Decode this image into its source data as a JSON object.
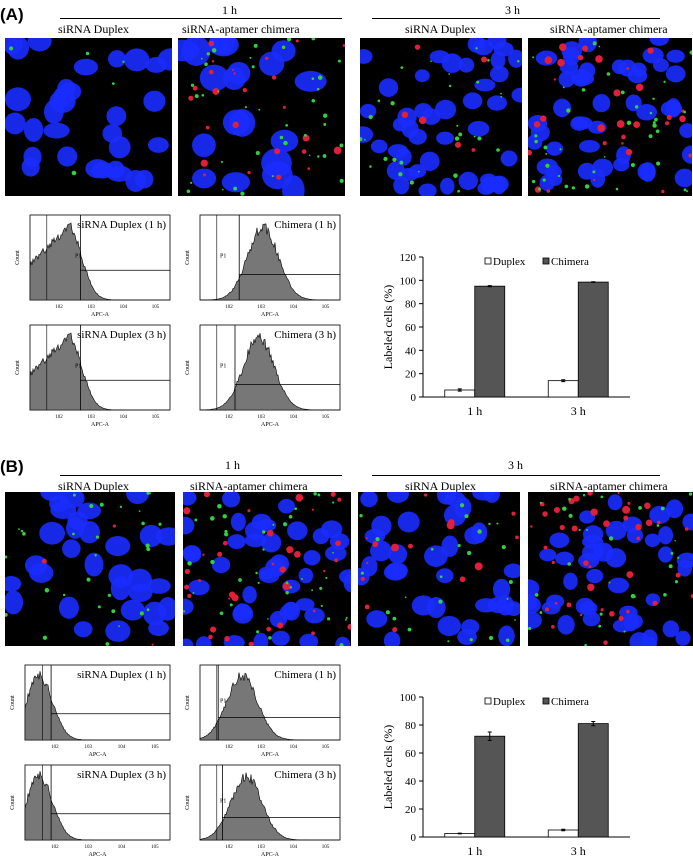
{
  "panels": [
    {
      "label": "(A)",
      "times": [
        "1 h",
        "3 h"
      ],
      "image_labels": [
        "siRNA Duplex",
        "siRNA-aptamer chimera",
        "siRNA Duplex",
        "siRNA-aptamer chimera"
      ],
      "histograms": [
        {
          "title": "siRNA Duplex (1 h)",
          "ylabel": "Count",
          "xlabel": "APC-A",
          "gate": "P1"
        },
        {
          "title": "Chimera (1 h)",
          "ylabel": "Count",
          "xlabel": "APC-A",
          "gate": "P1"
        },
        {
          "title": "siRNA Duplex (3 h)",
          "ylabel": "Count",
          "xlabel": "APC-A",
          "gate": "P1"
        },
        {
          "title": "Chimera (3 h)",
          "ylabel": "Count",
          "xlabel": "APC-A",
          "gate": "P1"
        }
      ]
    },
    {
      "label": "(B)",
      "times": [
        "1 h",
        "3 h"
      ],
      "image_labels": [
        "siRNA Duplex",
        "siRNA-aptamer chimera",
        "siRNA Duplex",
        "siRNA-aptamer chimera"
      ],
      "histograms": [
        {
          "title": "siRNA Duplex (1 h)",
          "ylabel": "Count",
          "xlabel": "APC-A",
          "gate": ""
        },
        {
          "title": "Chimera (1 h)",
          "ylabel": "Count",
          "xlabel": "APC-A",
          "gate": "P1"
        },
        {
          "title": "siRNA Duplex (3 h)",
          "ylabel": "Count",
          "xlabel": "APC-A",
          "gate": ""
        },
        {
          "title": "Chimera (3 h)",
          "ylabel": "Count",
          "xlabel": "APC-A",
          "gate": "P1"
        }
      ]
    }
  ],
  "colors": {
    "nuclei": "#1a2cff",
    "red_signal": "#e0203a",
    "green_signal": "#30d040",
    "duplex_bar": "#ffffff",
    "chimera_bar": "#555555",
    "histogram_fill": "#777777"
  },
  "chart_data": [
    {
      "type": "bar",
      "categories": [
        "1 h",
        "3 h"
      ],
      "series": [
        {
          "name": "Duplex",
          "values": [
            6,
            14
          ],
          "errors": [
            1,
            0.8
          ]
        },
        {
          "name": "Chimera",
          "values": [
            95,
            98.5
          ],
          "errors": [
            0.5,
            0.3
          ]
        }
      ],
      "ylabel": "Labeled cells (%)",
      "ylim": [
        0,
        120
      ],
      "yticks": [
        0,
        20,
        40,
        60,
        80,
        100,
        120
      ],
      "legend": "top",
      "grid": false
    },
    {
      "type": "bar",
      "categories": [
        "1 h",
        "3 h"
      ],
      "series": [
        {
          "name": "Duplex",
          "values": [
            2.5,
            5
          ],
          "errors": [
            0.3,
            0.5
          ]
        },
        {
          "name": "Chimera",
          "values": [
            72,
            81
          ],
          "errors": [
            3,
            1.5
          ]
        }
      ],
      "ylabel": "Labeled cells (%)",
      "ylim": [
        0,
        100
      ],
      "yticks": [
        0,
        20,
        40,
        60,
        80,
        100
      ],
      "legend": "top",
      "grid": false
    }
  ]
}
